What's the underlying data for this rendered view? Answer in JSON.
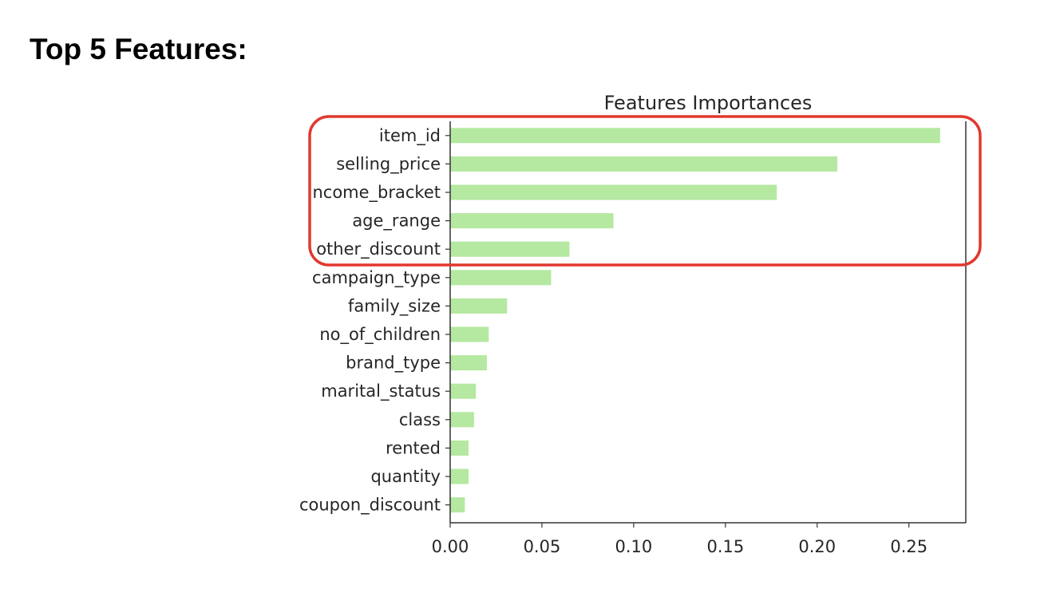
{
  "page": {
    "heading": "Top 5 Features:"
  },
  "colors": {
    "bar": "#b5e8a0",
    "highlight": "#e0392f",
    "axis": "#333333"
  },
  "chart_data": {
    "type": "bar",
    "orientation": "horizontal",
    "title": "Features Importances",
    "xlabel": "",
    "ylabel": "",
    "categories": [
      "item_id",
      "selling_price",
      "income_bracket",
      "age_range",
      "other_discount",
      "campaign_type",
      "family_size",
      "no_of_children",
      "brand_type",
      "marital_status",
      "class",
      "rented",
      "quantity",
      "coupon_discount"
    ],
    "values": [
      0.267,
      0.211,
      0.178,
      0.089,
      0.065,
      0.055,
      0.031,
      0.021,
      0.02,
      0.014,
      0.013,
      0.01,
      0.01,
      0.008
    ],
    "xlim": [
      0,
      0.281
    ],
    "xticks": [
      "0.00",
      "0.05",
      "0.10",
      "0.15",
      "0.20",
      "0.25"
    ],
    "xtick_values": [
      0,
      0.05,
      0.1,
      0.15,
      0.2,
      0.25
    ],
    "highlight": {
      "first": 0,
      "last": 4,
      "shape": "rounded-rectangle"
    },
    "grid": false,
    "legend": "none"
  }
}
